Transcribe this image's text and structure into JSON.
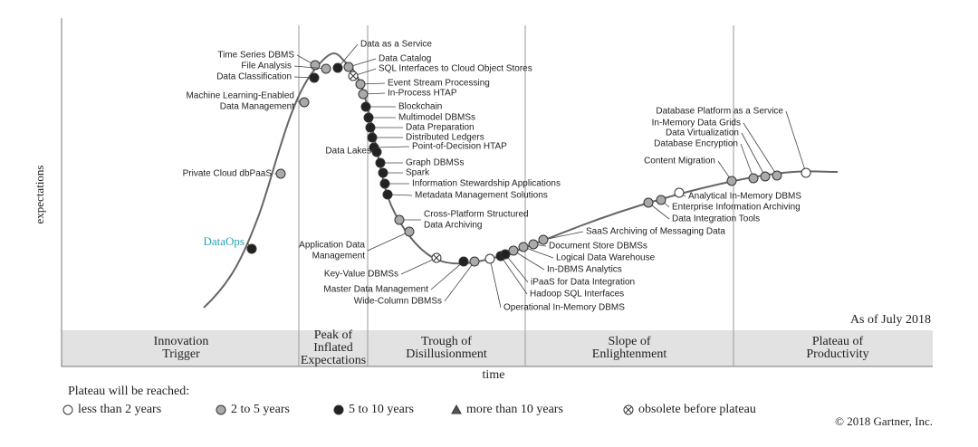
{
  "y_axis_label": "expectations",
  "x_axis_label": "time",
  "as_of": "As of July 2018",
  "phases": [
    {
      "lines": [
        "Innovation",
        "Trigger"
      ]
    },
    {
      "lines": [
        "Peak of",
        "Inflated",
        "Expectations"
      ]
    },
    {
      "lines": [
        "Trough of",
        "Disillusionment"
      ]
    },
    {
      "lines": [
        "Slope of",
        "Enlightenment"
      ]
    },
    {
      "lines": [
        "Plateau of",
        "Productivity"
      ]
    }
  ],
  "legend": {
    "title": "Plateau will be reached:",
    "items": [
      {
        "label": "less than 2 years",
        "marker": "white"
      },
      {
        "label": "2 to 5 years",
        "marker": "gray"
      },
      {
        "label": "5 to 10 years",
        "marker": "black"
      },
      {
        "label": "more than 10 years",
        "marker": "triangle"
      },
      {
        "label": "obsolete before plateau",
        "marker": "obsolete"
      }
    ]
  },
  "copyright": "© 2018 Gartner, Inc.",
  "technologies": [
    {
      "label": [
        "Time Series DBMS"
      ],
      "marker": "gray"
    },
    {
      "label": [
        "File Analysis"
      ],
      "marker": "gray"
    },
    {
      "label": [
        "Data Classification"
      ],
      "marker": "black"
    },
    {
      "label": [
        "Machine Learning-Enabled",
        "Data Management"
      ],
      "marker": "gray"
    },
    {
      "label": [
        "Private Cloud dbPaaS"
      ],
      "marker": "gray"
    },
    {
      "label": [
        "DataOps"
      ],
      "marker": "black"
    },
    {
      "label": [
        "Data as a Service"
      ],
      "marker": "black"
    },
    {
      "label": [
        "Data Catalog"
      ],
      "marker": "gray"
    },
    {
      "label": [
        "SQL Interfaces to Cloud Object Stores"
      ],
      "marker": "obsolete"
    },
    {
      "label": [
        "Event Stream Processing"
      ],
      "marker": "gray"
    },
    {
      "label": [
        "In-Process HTAP"
      ],
      "marker": "gray"
    },
    {
      "label": [
        "Blockchain"
      ],
      "marker": "black"
    },
    {
      "label": [
        "Multimodel DBMSs"
      ],
      "marker": "black"
    },
    {
      "label": [
        "Data Preparation"
      ],
      "marker": "black"
    },
    {
      "label": [
        "Distributed Ledgers"
      ],
      "marker": "black"
    },
    {
      "label": [
        "Point-of-Decision HTAP"
      ],
      "marker": "black"
    },
    {
      "label": [
        "Data Lakes"
      ],
      "marker": "black"
    },
    {
      "label": [
        "Graph DBMSs"
      ],
      "marker": "black"
    },
    {
      "label": [
        "Spark"
      ],
      "marker": "black"
    },
    {
      "label": [
        "Information Stewardship Applications"
      ],
      "marker": "black"
    },
    {
      "label": [
        "Metadata Management Solutions"
      ],
      "marker": "black"
    },
    {
      "label": [
        "Cross-Platform Structured",
        "Data Archiving"
      ],
      "marker": "gray"
    },
    {
      "label": [
        "Application Data",
        "Management"
      ],
      "marker": "gray"
    },
    {
      "label": [
        "Key-Value DBMSs"
      ],
      "marker": "obsolete"
    },
    {
      "label": [
        "Master Data Management"
      ],
      "marker": "black"
    },
    {
      "label": [
        "Wide-Column DBMSs"
      ],
      "marker": "gray"
    },
    {
      "label": [
        "Operational In-Memory DBMS"
      ],
      "marker": "white"
    },
    {
      "label": [
        "Hadoop SQL Interfaces"
      ],
      "marker": "black"
    },
    {
      "label": [
        "iPaaS for Data Integration"
      ],
      "marker": "black"
    },
    {
      "label": [
        "In-DBMS Analytics"
      ],
      "marker": "gray"
    },
    {
      "label": [
        "Logical Data Warehouse"
      ],
      "marker": "gray"
    },
    {
      "label": [
        "Document Store DBMSs"
      ],
      "marker": "gray"
    },
    {
      "label": [
        "SaaS Archiving of Messaging Data"
      ],
      "marker": "gray"
    },
    {
      "label": [
        "Data Integration Tools"
      ],
      "marker": "gray"
    },
    {
      "label": [
        "Enterprise Information Archiving"
      ],
      "marker": "gray"
    },
    {
      "label": [
        "Analytical In-Memory DBMS"
      ],
      "marker": "white"
    },
    {
      "label": [
        "Content Migration"
      ],
      "marker": "gray"
    },
    {
      "label": [
        "Database Encryption"
      ],
      "marker": "gray"
    },
    {
      "label": [
        "Data Virtualization"
      ],
      "marker": "gray"
    },
    {
      "label": [
        "In-Memory Data Grids"
      ],
      "marker": "gray"
    },
    {
      "label": [
        "Database Platform as a Service"
      ],
      "marker": "white"
    }
  ]
}
